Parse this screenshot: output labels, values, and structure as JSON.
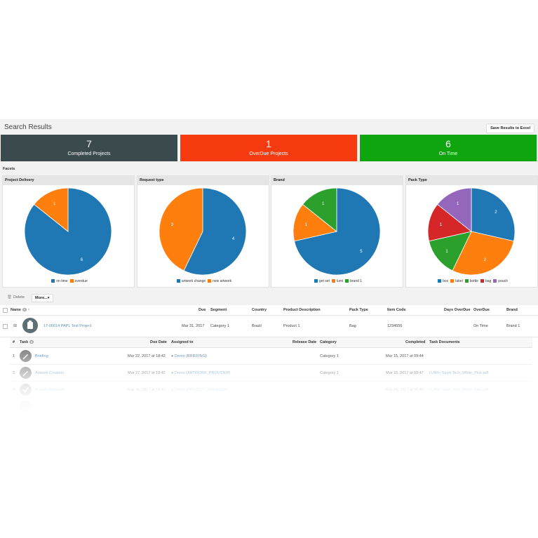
{
  "header": {
    "title": "Search Results",
    "save_label": "Save Results to Excel"
  },
  "tiles": [
    {
      "value": "7",
      "label": "Completed Projects",
      "color": "#3a4a4d"
    },
    {
      "value": "1",
      "label": "OverDue Projects",
      "color": "#f53b0f"
    },
    {
      "value": "6",
      "label": "On Time",
      "color": "#0ea50e"
    }
  ],
  "facets_label": "Facets",
  "colors": {
    "blue": "#1f77b4",
    "orange": "#ff7f0e",
    "green": "#2ca02c",
    "red": "#d62728",
    "purple": "#9467bd"
  },
  "chart_data": [
    {
      "type": "pie",
      "title": "Project Delivery",
      "labels": [
        "on time",
        "overdue"
      ],
      "values": [
        6,
        1
      ],
      "colors": [
        "#1f77b4",
        "#ff7f0e"
      ],
      "legend_position": "bottom"
    },
    {
      "type": "pie",
      "title": "Request type",
      "labels": [
        "artwork change",
        "new artwork"
      ],
      "values": [
        4,
        3
      ],
      "colors": [
        "#1f77b4",
        "#ff7f0e"
      ],
      "legend_position": "bottom"
    },
    {
      "type": "pie",
      "title": "Brand",
      "labels": [
        "get set",
        "lumi",
        "brand 1"
      ],
      "values": [
        5,
        1,
        1
      ],
      "colors": [
        "#1f77b4",
        "#ff7f0e",
        "#2ca02c"
      ],
      "legend_position": "bottom"
    },
    {
      "type": "pie",
      "title": "Pack Type",
      "labels": [
        "box",
        "label",
        "bottle",
        "bag",
        "pouch"
      ],
      "values": [
        2,
        2,
        1,
        1,
        1
      ],
      "colors": [
        "#1f77b4",
        "#ff7f0e",
        "#2ca02c",
        "#d62728",
        "#9467bd"
      ],
      "legend_position": "bottom"
    }
  ],
  "toolbar": {
    "delete_label": "Delete",
    "more_label": "More..."
  },
  "table": {
    "headers": {
      "name": "Name",
      "name_count": "7",
      "due": "Due",
      "segment": "Segment",
      "country": "Country",
      "product_description": "Product Description",
      "pack_type": "Pack Type",
      "item_code": "Item Code",
      "days_overdue": "Days OverDue",
      "overdue": "OverDue",
      "brand": "Brand"
    },
    "project": {
      "name": "17-00014 PAPL Test Project",
      "due": "Mar 31, 2017",
      "segment": "Category 1",
      "country": "Brazil",
      "product_description": "Product 1",
      "pack_type": "Bag",
      "item_code": "1234556",
      "overdue": "On Time",
      "brand": "Brand 1"
    },
    "task_headers": {
      "num": "#",
      "task": "Task",
      "task_count": "4",
      "due_date": "Due Date",
      "assigned_to": "Assigned to",
      "release_date": "Release Date",
      "category": "Category",
      "completed": "Completed",
      "task_documents": "Task Documents"
    },
    "tasks": [
      {
        "num": "1",
        "task": "Briefing",
        "due_date": "Mar 22, 2017 at 18:42",
        "assigned_to": "Demo (BRIEFING)",
        "category": "Category 1",
        "completed": "Mar 15, 2017 at 09:44",
        "document": "",
        "icon": "pencil-icon"
      },
      {
        "num": "2",
        "task": "Artwork Creation",
        "due_date": "Mar 27, 2017 at 19:42",
        "assigned_to": "Demo (ARTWORK_PROVIDER)",
        "category": "Category 1",
        "completed": "Mar 15, 2017 at 09:47",
        "document": "LUMI+ Sport Tech_White_Pink.pdf",
        "icon": "pencil-icon"
      },
      {
        "num": "3",
        "task": "Artwork Approval",
        "due_date": "Mar 30, 2017 at 19:42",
        "assigned_to": "Demo (PROJECT_MANAGER)",
        "category": "",
        "completed": "Mar 15, 2017 at 09:48",
        "document": "LUMI+ Sport Tech_White_Pink.pdf",
        "icon": "check-icon"
      }
    ]
  }
}
